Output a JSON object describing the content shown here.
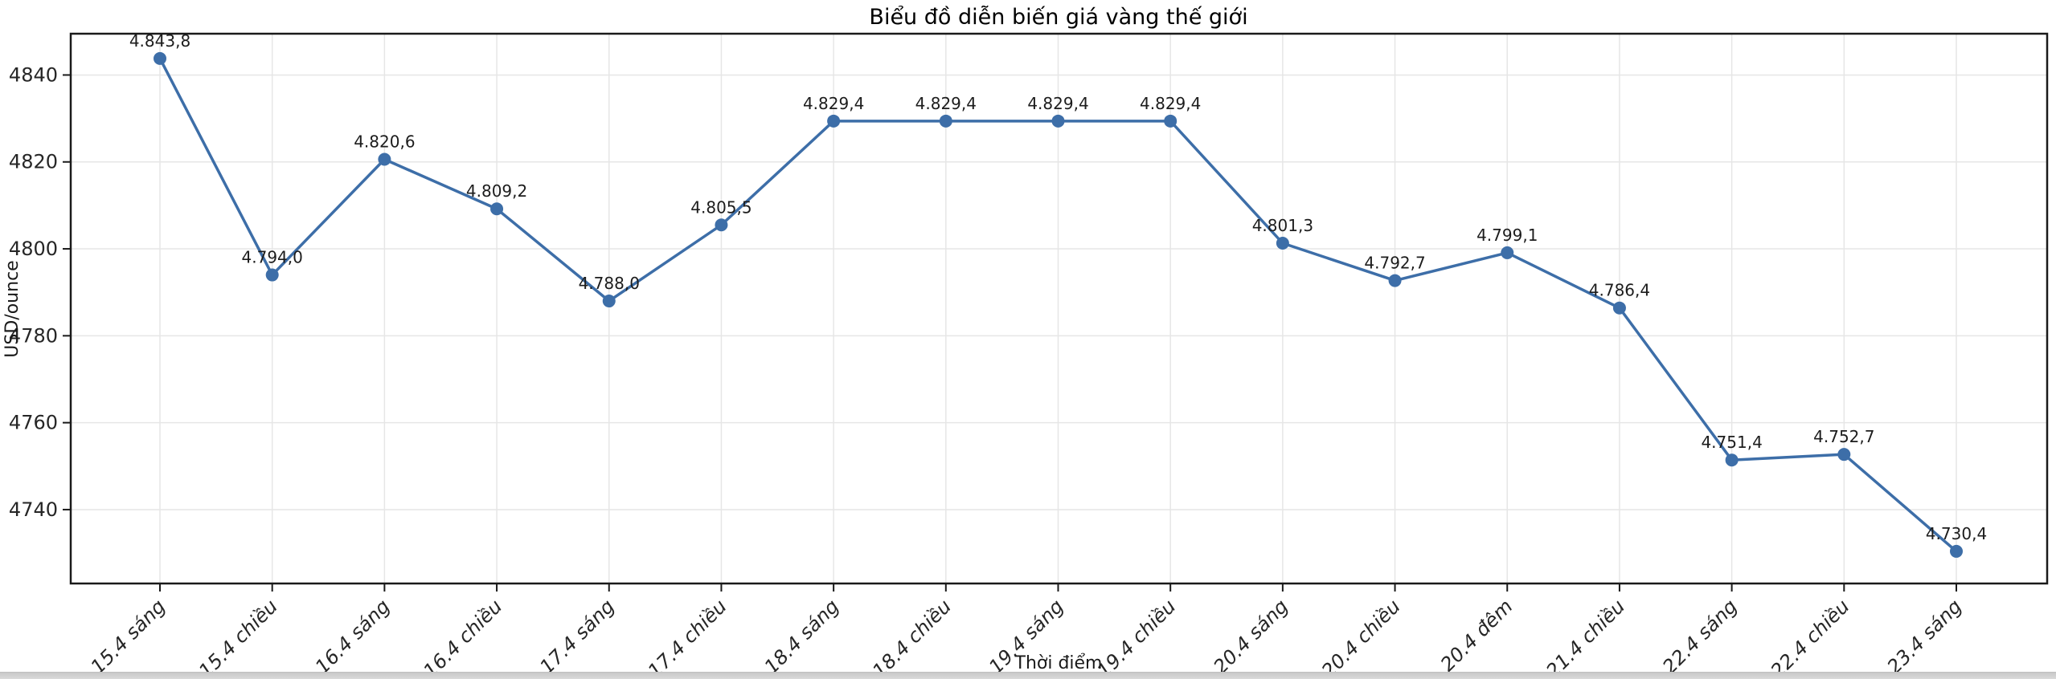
{
  "chart_data": {
    "type": "line",
    "title": "Biểu đồ diễn biến giá vàng thế giới",
    "xlabel": "Thời điểm",
    "ylabel": "USD/ounce",
    "categories": [
      "15.4 sáng",
      "15.4 chiều",
      "16.4 sáng",
      "16.4 chiều",
      "17.4 sáng",
      "17.4 chiều",
      "18.4 sáng",
      "18.4 chiều",
      "19.4 sáng",
      "19.4 chiều",
      "20.4 sáng",
      "20.4 chiều",
      "20.4 đêm",
      "21.4 chiều",
      "22.4 sáng",
      "22.4 chiều",
      "23.4 sáng"
    ],
    "values": [
      4843.8,
      4794.0,
      4820.6,
      4809.2,
      4788.0,
      4805.5,
      4829.4,
      4829.4,
      4829.4,
      4829.4,
      4801.3,
      4792.7,
      4799.1,
      4786.4,
      4751.4,
      4752.7,
      4730.4
    ],
    "point_labels": [
      "4.843,8",
      "4.794,0",
      "4.820,6",
      "4.809,2",
      "4.788,0",
      "4.805,5",
      "4.829,4",
      "4.829,4",
      "4.829,4",
      "4.829,4",
      "4.801,3",
      "4.792,7",
      "4.799,1",
      "4.786,4",
      "4.751,4",
      "4.752,7",
      "4.730,4"
    ],
    "yticks": [
      4740,
      4760,
      4780,
      4800,
      4820,
      4840
    ],
    "ylim": [
      4723,
      4849.5
    ],
    "grid": true,
    "legend_position": "none",
    "line_color": "#3d6ea8",
    "marker": "circle",
    "marker_color": "#3d6ea8",
    "grid_color": "#e6e6e6",
    "frame_color": "#1a1a1a",
    "background_color": "#ffffff",
    "bottom_bar_color": "#d5d5d5"
  }
}
